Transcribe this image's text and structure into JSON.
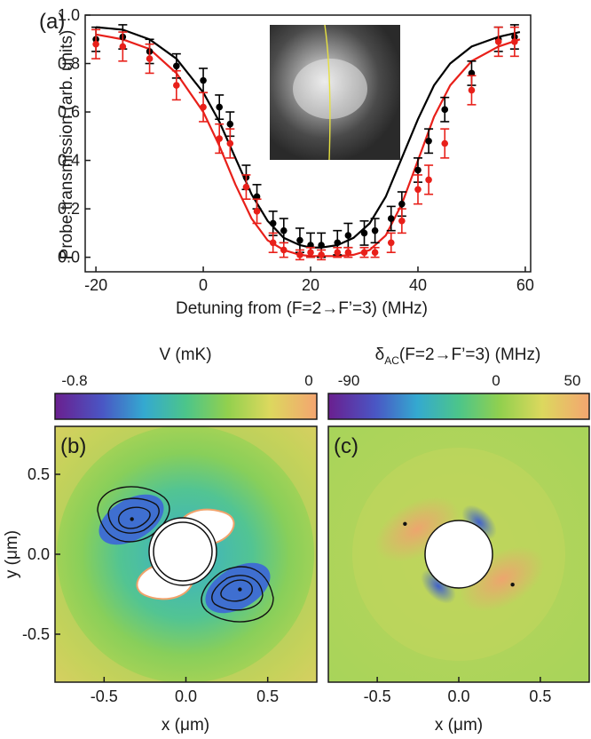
{
  "chart_data": [
    {
      "type": "line",
      "panel_label": "(a)",
      "xlabel": "Detuning from (F=2→F’=3) (MHz)",
      "ylabel": "Probe transmission (arb. units)",
      "xlim": [
        -22,
        61
      ],
      "ylim": [
        -0.06,
        1.0
      ],
      "xticks": [
        "-20",
        "0",
        "20",
        "40",
        "60"
      ],
      "yticks": [
        "0.0",
        "0.2",
        "0.4",
        "0.6",
        "0.8",
        "1.0"
      ],
      "inset": "fluorescence image of atom cloud with a thin yellow line",
      "series": [
        {
          "color": "#000000",
          "x": [
            -20,
            -15,
            -10,
            -5,
            0,
            3,
            5,
            8,
            10,
            13,
            15,
            18,
            20,
            22,
            25,
            27,
            30,
            32,
            35,
            37,
            40,
            42,
            45,
            50,
            55,
            58
          ],
          "y": [
            0.9,
            0.91,
            0.85,
            0.79,
            0.73,
            0.62,
            0.55,
            0.33,
            0.25,
            0.14,
            0.11,
            0.07,
            0.05,
            0.05,
            0.06,
            0.09,
            0.1,
            0.11,
            0.16,
            0.22,
            0.36,
            0.48,
            0.61,
            0.76,
            0.9,
            0.91
          ],
          "err": [
            0.05,
            0.05,
            0.05,
            0.05,
            0.05,
            0.05,
            0.05,
            0.05,
            0.05,
            0.05,
            0.05,
            0.05,
            0.05,
            0.05,
            0.05,
            0.05,
            0.05,
            0.05,
            0.05,
            0.05,
            0.05,
            0.05,
            0.05,
            0.05,
            0.05,
            0.05
          ],
          "fit_x": [
            -20,
            -15,
            -10,
            -5,
            0,
            3,
            6,
            9,
            12,
            15,
            18,
            20,
            22,
            25,
            28,
            31,
            34,
            37,
            40,
            43,
            46,
            50,
            55,
            59
          ],
          "fit_y": [
            0.95,
            0.94,
            0.9,
            0.82,
            0.68,
            0.56,
            0.41,
            0.26,
            0.15,
            0.08,
            0.05,
            0.04,
            0.04,
            0.05,
            0.08,
            0.14,
            0.25,
            0.41,
            0.57,
            0.71,
            0.8,
            0.87,
            0.91,
            0.93
          ]
        },
        {
          "color": "#e8201a",
          "x": [
            -20,
            -15,
            -10,
            -5,
            0,
            3,
            5,
            8,
            10,
            13,
            15,
            18,
            20,
            22,
            25,
            27,
            30,
            32,
            35,
            37,
            40,
            42,
            45,
            50,
            55,
            58
          ],
          "y": [
            0.88,
            0.87,
            0.82,
            0.71,
            0.62,
            0.49,
            0.47,
            0.29,
            0.19,
            0.06,
            0.03,
            0.01,
            0.02,
            0.01,
            0.02,
            0.02,
            0.02,
            0.02,
            0.06,
            0.15,
            0.28,
            0.32,
            0.47,
            0.69,
            0.89,
            0.89
          ],
          "err": [
            0.06,
            0.06,
            0.06,
            0.06,
            0.06,
            0.06,
            0.06,
            0.05,
            0.05,
            0.04,
            0.03,
            0.02,
            0.02,
            0.02,
            0.02,
            0.02,
            0.02,
            0.02,
            0.04,
            0.05,
            0.06,
            0.06,
            0.06,
            0.06,
            0.06,
            0.06
          ],
          "fit_x": [
            -20,
            -15,
            -10,
            -5,
            0,
            3,
            6,
            9,
            12,
            15,
            18,
            20,
            22,
            25,
            28,
            31,
            34,
            37,
            40,
            43,
            46,
            50,
            55,
            59
          ],
          "fit_y": [
            0.92,
            0.9,
            0.86,
            0.76,
            0.6,
            0.46,
            0.3,
            0.16,
            0.07,
            0.03,
            0.01,
            0.005,
            0.005,
            0.005,
            0.01,
            0.03,
            0.09,
            0.22,
            0.4,
            0.58,
            0.71,
            0.81,
            0.87,
            0.9
          ]
        }
      ]
    },
    {
      "type": "heatmap",
      "panel_label": "(b)",
      "colorbar_label": "V (mK)",
      "colorbar_ticks": [
        "-0.8",
        "0"
      ],
      "colorbar_range": [
        -0.8,
        0
      ],
      "xlabel": "x (μm)",
      "ylabel": "y (μm)",
      "xlim": [
        -0.8,
        0.8
      ],
      "ylim": [
        -0.8,
        0.8
      ],
      "xticks": [
        "-0.5",
        "0.0",
        "0.5"
      ],
      "yticks": [
        "0.5",
        "0.0",
        "-0.5"
      ],
      "minima_markers": [
        [
          -0.33,
          0.22
        ],
        [
          0.33,
          -0.22
        ]
      ]
    },
    {
      "type": "heatmap",
      "panel_label": "(c)",
      "colorbar_label": "δ",
      "colorbar_label_sub": "AC",
      "colorbar_label_rest": "(F=2→F’=3) (MHz)",
      "colorbar_ticks": [
        "-90",
        "0",
        "50"
      ],
      "colorbar_range": [
        -90,
        50
      ],
      "xlabel": "x (μm)",
      "xlim": [
        -0.8,
        0.8
      ],
      "ylim": [
        -0.8,
        0.8
      ],
      "xticks": [
        "-0.5",
        "0.0",
        "0.5"
      ],
      "markers": [
        [
          -0.33,
          0.19
        ],
        [
          0.33,
          -0.19
        ]
      ]
    }
  ],
  "colors": {
    "black_series": "#000000",
    "red_series": "#e8201a",
    "inset_line": "#e6e040",
    "colormap": [
      "#6a1f8f",
      "#3b6fd6",
      "#34b7c4",
      "#52c47a",
      "#9fd34f",
      "#dedc5e",
      "#f2a36a"
    ]
  }
}
